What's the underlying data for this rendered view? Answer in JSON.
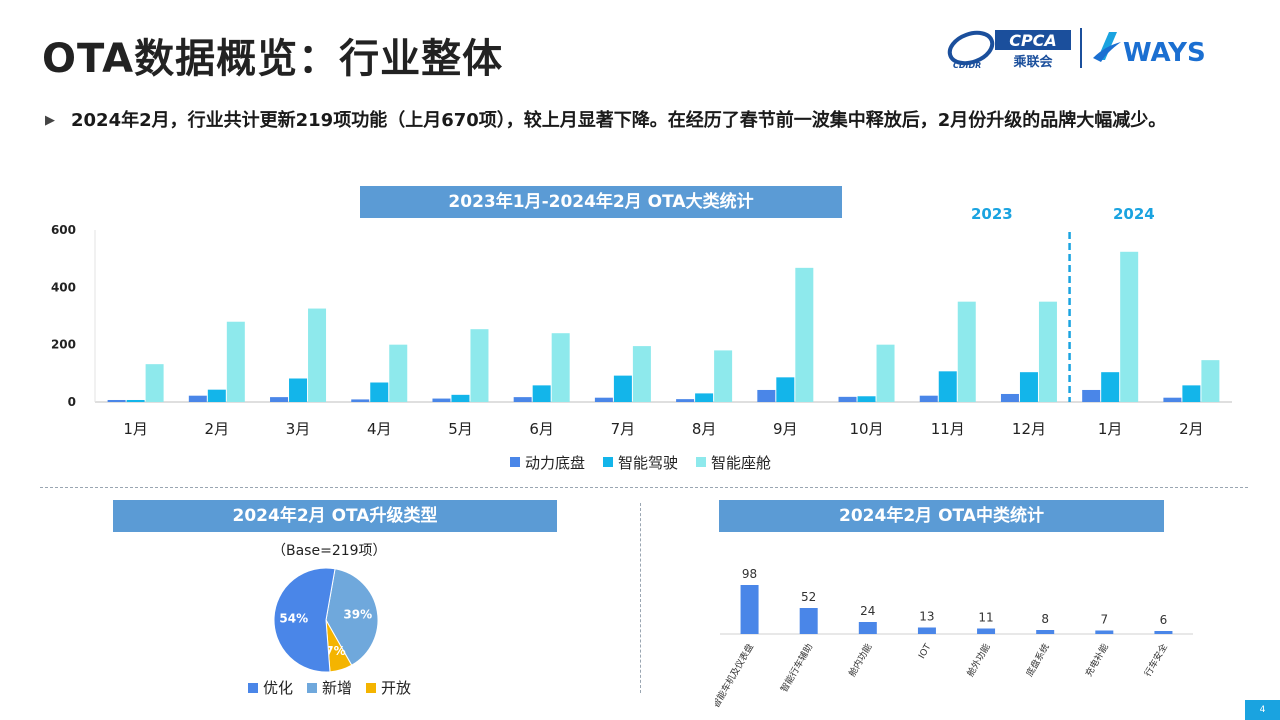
{
  "title": "OTA数据概览：行业整体",
  "logos": {
    "cpca": "CPCA",
    "cpca_sub": "乘联会",
    "cdidr": "CDIDR",
    "ways": "WAYS"
  },
  "bullet": {
    "text": "2024年2月，行业共计更新219项功能（上月670项），较上月显著下降。在经历了春节前一波集中释放后，2月份升级的品牌大幅减少。"
  },
  "page_number": "4",
  "colors": {
    "power": "#4a86e8",
    "adas": "#13b5ea",
    "cockpit": "#8ee9ec",
    "banner": "#5b9bd5",
    "accent": "#1aa3e0",
    "pie_opt": "#4a86e8",
    "pie_new": "#6fa8dc",
    "pie_open": "#f4b400"
  },
  "chart_data": [
    {
      "type": "bar",
      "title": "2023年1月-2024年2月 OTA大类统计",
      "year_labels": [
        "2023",
        "2024"
      ],
      "categories": [
        "1月",
        "2月",
        "3月",
        "4月",
        "5月",
        "6月",
        "7月",
        "8月",
        "9月",
        "10月",
        "11月",
        "12月",
        "1月",
        "2月"
      ],
      "series": [
        {
          "name": "动力底盘",
          "values": [
            7,
            22,
            17,
            9,
            12,
            17,
            15,
            10,
            42,
            18,
            22,
            28,
            42,
            15
          ]
        },
        {
          "name": "智能驾驶",
          "values": [
            7,
            43,
            82,
            68,
            25,
            58,
            92,
            30,
            86,
            20,
            107,
            104,
            104,
            58
          ]
        },
        {
          "name": "智能座舱",
          "values": [
            132,
            280,
            326,
            200,
            254,
            240,
            195,
            180,
            468,
            200,
            350,
            350,
            524,
            146
          ]
        }
      ],
      "ylim": [
        0,
        600
      ],
      "yticks": [
        0,
        200,
        400,
        600
      ],
      "legend": "bottom",
      "grid": false
    },
    {
      "type": "pie",
      "title": "2024年2月 OTA升级类型",
      "subtitle": "（Base=219项）",
      "slices": [
        {
          "name": "优化",
          "value": 54,
          "label": "54%"
        },
        {
          "name": "新增",
          "value": 39,
          "label": "39%"
        },
        {
          "name": "开放",
          "value": 7,
          "label": "7%"
        }
      ],
      "legend": "bottom"
    },
    {
      "type": "bar",
      "title": "2024年2月 OTA中类统计",
      "categories": [
        "智能车机及仪表盘",
        "智能行车辅助",
        "舱内功能",
        "IOT",
        "舱外功能",
        "底盘系统",
        "充电补能",
        "行车安全"
      ],
      "values": [
        98,
        52,
        24,
        13,
        11,
        8,
        7,
        6
      ],
      "ylim": [
        0,
        100
      ],
      "legend": "none",
      "grid": false
    }
  ]
}
